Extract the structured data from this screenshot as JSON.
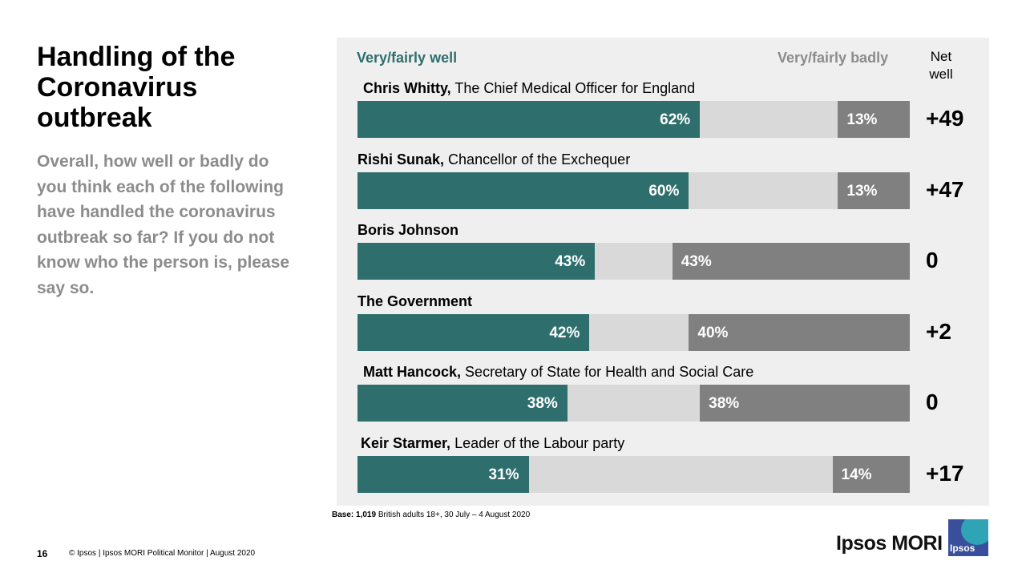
{
  "slide": {
    "title": "Handling of the Coronavirus outbreak",
    "question": "Overall, how well or badly do you think each of the following have handled the coronavirus outbreak so far?  If you do not know who the person is, please say so.",
    "base_label": "Base:",
    "base_count": "1,019",
    "base_text": "British adults 18+, 30 July – 4 August 2020",
    "page_number": "16",
    "footer": "© Ipsos | Ipsos MORI Political Monitor | August 2020",
    "brand": "Ipsos MORI",
    "logo_text": "Ipsos"
  },
  "chart_data": {
    "type": "bar",
    "orientation": "horizontal-stacked",
    "legend": {
      "well": "Very/fairly  well",
      "badly": "Very/fairly  badly",
      "net": "Net well"
    },
    "scale_max": 100,
    "colors": {
      "well": "#2e6f6d",
      "badly": "#808080",
      "other": "#d9d9d9"
    },
    "rows": [
      {
        "name": "Chris Whitty,",
        "role": "The Chief Medical Officer for England",
        "well": 62,
        "badly": 13,
        "well_label": "62%",
        "badly_label": "13%",
        "net": "+49"
      },
      {
        "name": "Rishi Sunak,",
        "role": "Chancellor of the Exchequer",
        "well": 60,
        "badly": 13,
        "well_label": "60%",
        "badly_label": "13%",
        "net": "+47"
      },
      {
        "name": "Boris Johnson",
        "role": "",
        "well": 43,
        "badly": 43,
        "well_label": "43%",
        "badly_label": "43%",
        "net": "0"
      },
      {
        "name": "The Government",
        "role": "",
        "well": 42,
        "badly": 40,
        "well_label": "42%",
        "badly_label": "40%",
        "net": "+2"
      },
      {
        "name": "Matt Hancock,",
        "role": "Secretary of State for Health and Social Care",
        "well": 38,
        "badly": 38,
        "well_label": "38%",
        "badly_label": "38%",
        "net": "0"
      },
      {
        "name": "Keir Starmer,",
        "role": "Leader of the Labour party",
        "well": 31,
        "badly": 14,
        "well_label": "31%",
        "badly_label": "14%",
        "net": "+17"
      }
    ]
  }
}
